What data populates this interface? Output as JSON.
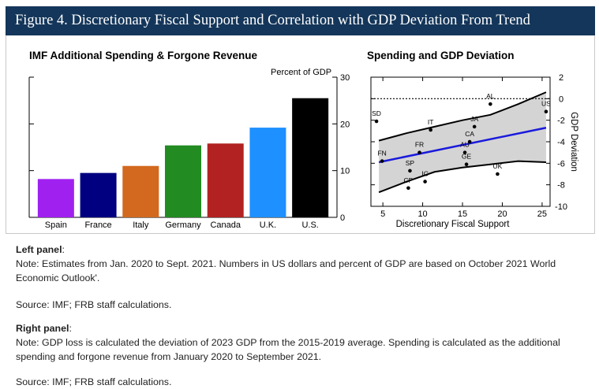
{
  "figure_title": "Figure 4. Discretionary Fiscal Support and Correlation with GDP Deviation From Trend",
  "chart_data": [
    {
      "type": "bar",
      "title": "IMF Additional Spending & Forgone Revenue",
      "unit_label": "Percent of GDP",
      "categories": [
        "Spain",
        "France",
        "Italy",
        "Germany",
        "Canada",
        "U.K.",
        "U.S."
      ],
      "values": [
        8.2,
        9.5,
        11.0,
        15.4,
        15.8,
        19.2,
        25.5
      ],
      "colors": [
        "#a020f0",
        "#000080",
        "#d2691e",
        "#228b22",
        "#b22222",
        "#1e90ff",
        "#000000"
      ],
      "ylim": [
        0,
        30
      ],
      "yticks": [
        0,
        10,
        20,
        30
      ],
      "y_axis_side": "right"
    },
    {
      "type": "scatter",
      "title": "Spending and GDP Deviation",
      "xlabel": "Discretionary Fiscal Support",
      "ylabel": "GDP Deviation",
      "xlim": [
        3.5,
        26
      ],
      "ylim": [
        -10,
        2
      ],
      "xticks": [
        5,
        10,
        15,
        20,
        25
      ],
      "yticks": [
        -10,
        -8,
        -6,
        -4,
        -2,
        0,
        2
      ],
      "y_axis_side": "right",
      "zero_line": "dotted",
      "points": [
        {
          "label": "AL",
          "x": 18.5,
          "y": -0.5
        },
        {
          "label": "US",
          "x": 25.5,
          "y": -1.2
        },
        {
          "label": "SD",
          "x": 4.2,
          "y": -2.1
        },
        {
          "label": "IT",
          "x": 11.0,
          "y": -2.9
        },
        {
          "label": "JA",
          "x": 16.5,
          "y": -2.6
        },
        {
          "label": "CA",
          "x": 15.9,
          "y": -4.0
        },
        {
          "label": "FR",
          "x": 9.6,
          "y": -5.0
        },
        {
          "label": "AU",
          "x": 15.3,
          "y": -5.0
        },
        {
          "label": "FN",
          "x": 4.9,
          "y": -5.8
        },
        {
          "label": "GE",
          "x": 15.5,
          "y": -6.1
        },
        {
          "label": "SP",
          "x": 8.4,
          "y": -6.7
        },
        {
          "label": "UK",
          "x": 19.4,
          "y": -7.0
        },
        {
          "label": "IC",
          "x": 10.3,
          "y": -7.7
        },
        {
          "label": "CP",
          "x": 8.2,
          "y": -8.3
        }
      ],
      "fit_line": {
        "x": [
          4.5,
          25.5
        ],
        "y": [
          -5.9,
          -2.7
        ],
        "color": "#1a1adc"
      },
      "confidence_band": {
        "x": [
          4.5,
          8,
          11.5,
          15,
          18.5,
          22,
          25.5
        ],
        "upper": [
          -3.9,
          -3.2,
          -2.6,
          -2.0,
          -1.5,
          -0.5,
          0.6
        ],
        "lower": [
          -8.7,
          -7.7,
          -6.8,
          -6.4,
          -6.1,
          -5.8,
          -5.9
        ],
        "fill": "#d4d4d4"
      }
    }
  ],
  "notes": {
    "left_heading": "Left panel",
    "left_heading_suffix": ":",
    "left_note": "Note: Estimates from Jan. 2020 to Sept. 2021. Numbers in US dollars and percent of GDP are based on October 2021 World Economic Outlook'.",
    "left_source": "Source: IMF; FRB staff calculations.",
    "right_heading": "Right panel",
    "right_heading_suffix": ":",
    "right_note": "Note: GDP loss is calculated the deviation of 2023 GDP from the 2015-2019 average. Spending is calculated as the additional spending and forgone revenue from January 2020 to September 2021.",
    "right_source": "Source: IMF; FRB staff calculations."
  }
}
